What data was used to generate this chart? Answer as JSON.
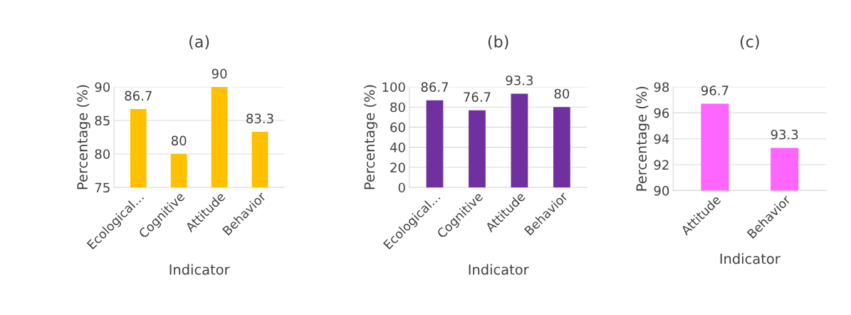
{
  "chart_data": [
    {
      "type": "bar",
      "title": "(a)",
      "xlabel": "Indicator",
      "ylabel": "Percentage (%)",
      "categories": [
        "Ecological…",
        "Cognitive",
        "Attitude",
        "Behavior"
      ],
      "values": [
        86.7,
        80,
        90,
        83.3
      ],
      "color": "#ffc000",
      "ylim": [
        75,
        90
      ],
      "yticks": [
        75,
        80,
        85,
        90
      ],
      "grid": "y",
      "data_labels": true
    },
    {
      "type": "bar",
      "title": "(b)",
      "xlabel": "Indicator",
      "ylabel": "Percentage (%)",
      "categories": [
        "Ecological…",
        "Cognitive",
        "Attitude",
        "Behavior"
      ],
      "values": [
        86.7,
        76.7,
        93.3,
        80
      ],
      "color": "#7030a0",
      "ylim": [
        0,
        100
      ],
      "yticks": [
        0,
        20,
        40,
        60,
        80,
        100
      ],
      "grid": "y",
      "data_labels": true
    },
    {
      "type": "bar",
      "title": "(c)",
      "xlabel": "Indicator",
      "ylabel": "Percentage (%)",
      "categories": [
        "Attitude",
        "Behavior"
      ],
      "values": [
        96.7,
        93.3
      ],
      "color": "#ff66ff",
      "ylim": [
        90,
        98
      ],
      "yticks": [
        90,
        92,
        94,
        96,
        98
      ],
      "grid": "y",
      "data_labels": true
    }
  ]
}
